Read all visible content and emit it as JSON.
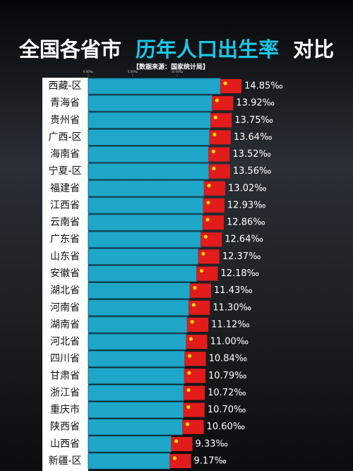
{
  "chart_data": {
    "type": "bar",
    "orientation": "horizontal",
    "title": "全国各省市",
    "title_highlight": "历年人口出生率",
    "title_suffix": "对比",
    "subtitle": "【数据来源：国家统计局】",
    "categories": [
      "西藏-区",
      "青海省",
      "贵州省",
      "广西-区",
      "海南省",
      "宁夏-区",
      "福建省",
      "江西省",
      "云南省",
      "广东省",
      "山东省",
      "安徽省",
      "湖北省",
      "河南省",
      "湖南省",
      "河北省",
      "四川省",
      "甘肃省",
      "浙江省",
      "重庆市",
      "陕西省",
      "山西省",
      "新疆-区"
    ],
    "values": [
      14.85,
      13.92,
      13.75,
      13.64,
      13.52,
      13.56,
      13.02,
      12.93,
      12.86,
      12.64,
      12.37,
      12.18,
      11.43,
      11.3,
      11.12,
      11.0,
      10.84,
      10.79,
      10.72,
      10.7,
      10.6,
      9.33,
      9.17
    ],
    "value_labels": [
      "14.85‰",
      "13.92‰",
      "13.75‰",
      "13.64‰",
      "13.52‰",
      "13.56‰",
      "13.02‰",
      "12.93‰",
      "12.86‰",
      "12.64‰",
      "12.37‰",
      "12.18‰",
      "11.43‰",
      "11.30‰",
      "11.12‰",
      "11.00‰",
      "10.84‰",
      "10.79‰",
      "10.72‰",
      "10.70‰",
      "10.60‰",
      "9.33‰",
      "9.17‰"
    ],
    "color": "#1ea7c9",
    "xlim": [
      0,
      20
    ],
    "xticks": [
      {
        "value": 0,
        "label": "0.00‰"
      },
      {
        "value": 5,
        "label": "5.00‰"
      },
      {
        "value": 10,
        "label": "10.00‰"
      }
    ]
  }
}
